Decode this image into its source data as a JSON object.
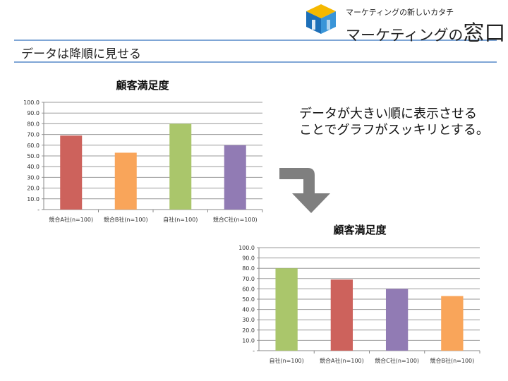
{
  "header": {
    "brand_sub": "マーケティングの新しいカタチ",
    "brand_main": "マーケティングの",
    "brand_big": "窓口",
    "page_title": "データは降順に見せる"
  },
  "note": {
    "line1": "データが大きい順に表示させる",
    "line2": "ことでグラフがスッキリとする。"
  },
  "colors": {
    "rule": "#7fa6d6",
    "arrow": "#7f7f7f"
  },
  "chart_data": [
    {
      "type": "bar",
      "title": "顧客満足度",
      "categories": [
        "競合A社(n=100)",
        "競合B社(n=100)",
        "自社(n=100)",
        "競合C社(n=100)"
      ],
      "values": [
        69,
        53,
        80,
        60
      ],
      "colors": [
        "#cd625c",
        "#f9a55a",
        "#aac66b",
        "#917bb4"
      ],
      "ylim": [
        0,
        100
      ],
      "yticks": [
        "-",
        "10.0",
        "20.0",
        "30.0",
        "40.0",
        "50.0",
        "60.0",
        "70.0",
        "80.0",
        "90.0",
        "100.0"
      ],
      "grid": true
    },
    {
      "type": "bar",
      "title": "顧客満足度",
      "categories": [
        "自社(n=100)",
        "競合A社(n=100)",
        "競合C社(n=100)",
        "競合B社(n=100)"
      ],
      "values": [
        80,
        69,
        60,
        53
      ],
      "colors": [
        "#aac66b",
        "#cd625c",
        "#917bb4",
        "#f9a55a"
      ],
      "ylim": [
        0,
        100
      ],
      "yticks": [
        "-",
        "10.0",
        "20.0",
        "30.0",
        "40.0",
        "50.0",
        "60.0",
        "70.0",
        "80.0",
        "90.0",
        "100.0"
      ],
      "grid": true
    }
  ]
}
